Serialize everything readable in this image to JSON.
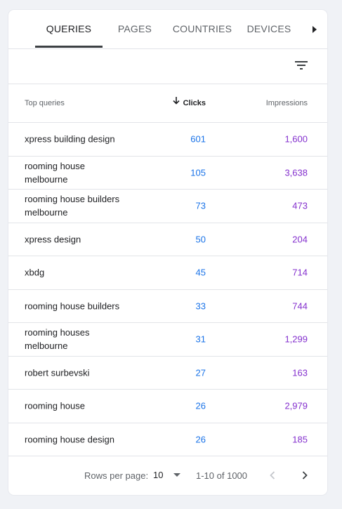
{
  "tabs": [
    {
      "label": "QUERIES",
      "active": true
    },
    {
      "label": "PAGES",
      "active": false
    },
    {
      "label": "COUNTRIES",
      "active": false
    },
    {
      "label": "DEVICES",
      "active": false
    }
  ],
  "icons": {
    "tab_scroll": "triangle-right-icon",
    "filter": "filter-list-icon",
    "sort": "arrow-down-icon",
    "prev": "chevron-left-icon",
    "next": "chevron-right-icon"
  },
  "colors": {
    "clicks": "#1a73e8",
    "impressions": "#8430ce",
    "active_tab_indicator": "#3c4043"
  },
  "table": {
    "headers": {
      "query": "Top queries",
      "clicks": "Clicks",
      "impressions": "Impressions"
    },
    "sort_column": "clicks",
    "sort_direction": "descending",
    "rows": [
      {
        "query": "xpress building design",
        "clicks": "601",
        "impressions": "1,600"
      },
      {
        "query": "rooming house melbourne",
        "clicks": "105",
        "impressions": "3,638"
      },
      {
        "query": "rooming house builders melbourne",
        "clicks": "73",
        "impressions": "473"
      },
      {
        "query": "xpress design",
        "clicks": "50",
        "impressions": "204"
      },
      {
        "query": "xbdg",
        "clicks": "45",
        "impressions": "714"
      },
      {
        "query": "rooming house builders",
        "clicks": "33",
        "impressions": "744"
      },
      {
        "query": "rooming houses melbourne",
        "clicks": "31",
        "impressions": "1,299"
      },
      {
        "query": "robert surbevski",
        "clicks": "27",
        "impressions": "163"
      },
      {
        "query": "rooming house",
        "clicks": "26",
        "impressions": "2,979"
      },
      {
        "query": "rooming house design",
        "clicks": "26",
        "impressions": "185"
      }
    ]
  },
  "pagination": {
    "rows_per_page_label": "Rows per page:",
    "rows_per_page_value": "10",
    "range": "1-10 of 1000"
  }
}
